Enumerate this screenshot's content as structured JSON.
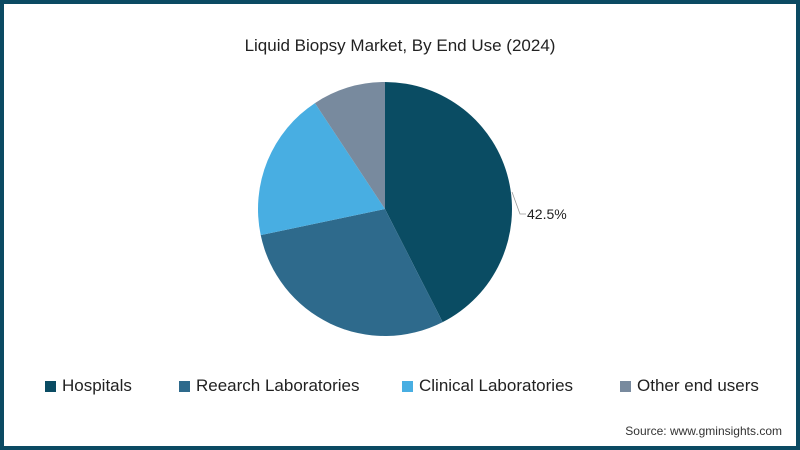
{
  "chart_data": {
    "type": "pie",
    "title": "Liquid Biopsy Market, By End Use (2024)",
    "categories": [
      "Hospitals",
      "Reearch Laboratories",
      "Clinical Laboratories",
      "Other end users"
    ],
    "values": [
      42.5,
      29.2,
      19.0,
      9.3
    ],
    "unit": "%",
    "colors": [
      "#0a4c63",
      "#2e6a8c",
      "#48aee2",
      "#788a9e"
    ],
    "data_labels": [
      {
        "category": "Hospitals",
        "text": "42.5%"
      }
    ],
    "legend_position": "bottom",
    "start_angle": "12 o'clock, clockwise"
  },
  "title": "Liquid Biopsy Market, By End Use (2024)",
  "label_hospitals": "42.5%",
  "legend": {
    "items": [
      {
        "label": "Hospitals",
        "color": "#0a4c63"
      },
      {
        "label": "Reearch Laboratories",
        "color": "#2e6a8c"
      },
      {
        "label": "Clinical Laboratories",
        "color": "#48aee2"
      },
      {
        "label": "Other end users",
        "color": "#788a9e"
      }
    ]
  },
  "source": "Source: www.gminsights.com",
  "colors": {
    "border": "#0b4a63",
    "background": "#ffffff"
  }
}
